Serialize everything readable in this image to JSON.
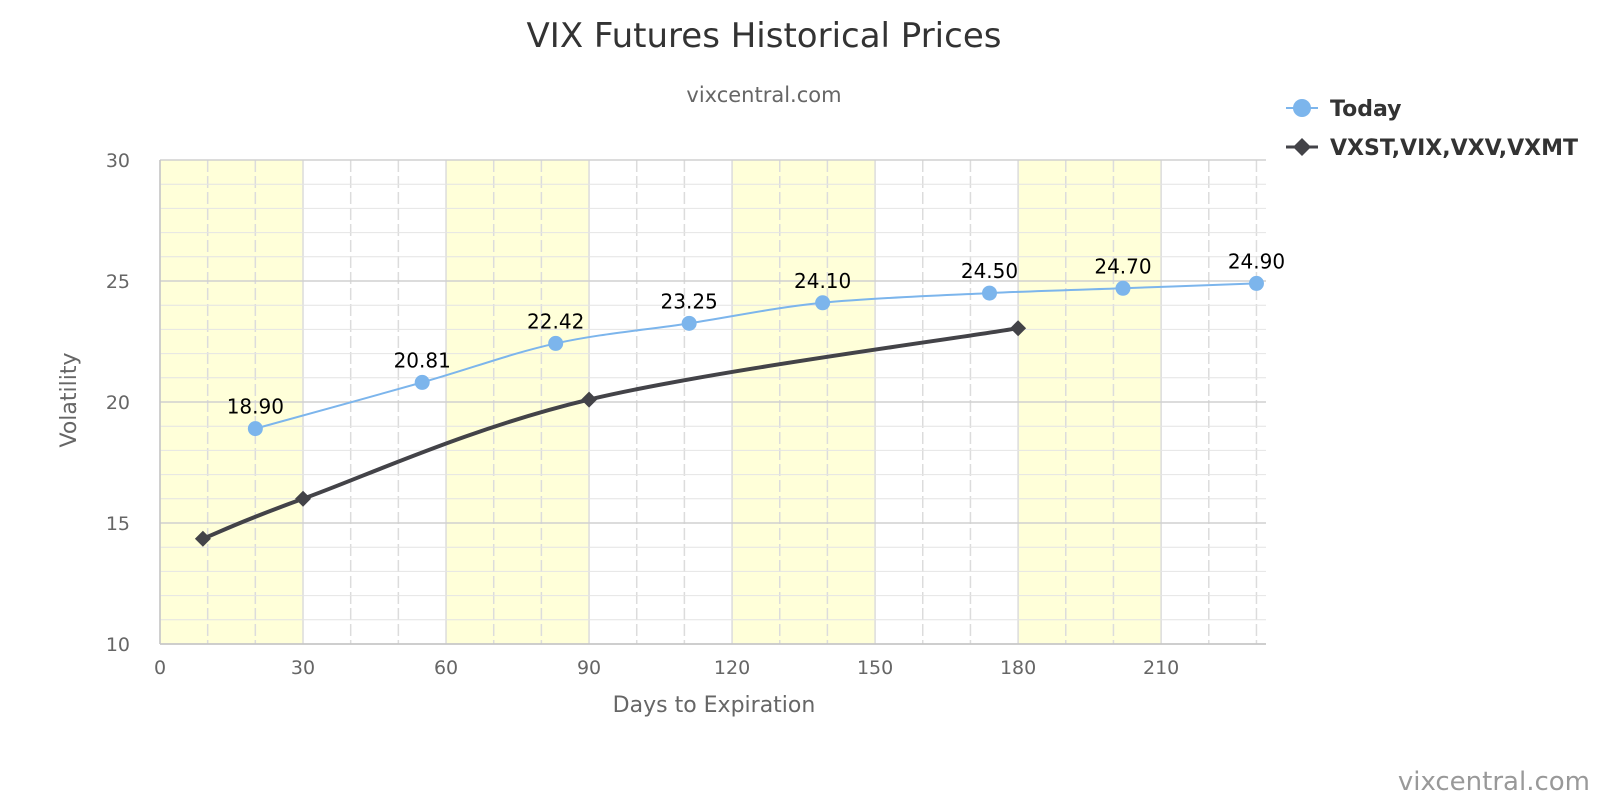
{
  "chart_data": {
    "type": "line",
    "title": "VIX Futures Historical Prices",
    "subtitle": "vixcentral.com",
    "xlabel": "Days to Expiration",
    "ylabel": "Volatility",
    "xlim": [
      0,
      232
    ],
    "ylim": [
      10,
      30
    ],
    "x_ticks": [
      0,
      30,
      60,
      90,
      120,
      150,
      180,
      210
    ],
    "y_ticks": [
      10,
      15,
      20,
      25,
      30
    ],
    "grid": true,
    "alternating_bands_x": [
      [
        0,
        30
      ],
      [
        60,
        90
      ],
      [
        120,
        150
      ],
      [
        180,
        210
      ]
    ],
    "legend_position": "top-right",
    "credits": "vixcentral.com",
    "series": [
      {
        "name": "Today",
        "marker": "circle",
        "color": "#7cb5ec",
        "data_labels": true,
        "points": [
          {
            "x": 20,
            "y": 18.9,
            "label": "18.90"
          },
          {
            "x": 55,
            "y": 20.81,
            "label": "20.81"
          },
          {
            "x": 83,
            "y": 22.42,
            "label": "22.42"
          },
          {
            "x": 111,
            "y": 23.25,
            "label": "23.25"
          },
          {
            "x": 139,
            "y": 24.1,
            "label": "24.10"
          },
          {
            "x": 174,
            "y": 24.5,
            "label": "24.50"
          },
          {
            "x": 202,
            "y": 24.7,
            "label": "24.70"
          },
          {
            "x": 230,
            "y": 24.9,
            "label": "24.90"
          }
        ]
      },
      {
        "name": "VXST,VIX,VXV,VXMT",
        "marker": "diamond",
        "color": "#434348",
        "data_labels": false,
        "points": [
          {
            "x": 9,
            "y": 14.35
          },
          {
            "x": 30,
            "y": 16.0
          },
          {
            "x": 90,
            "y": 20.1
          },
          {
            "x": 180,
            "y": 23.05
          }
        ]
      }
    ]
  }
}
